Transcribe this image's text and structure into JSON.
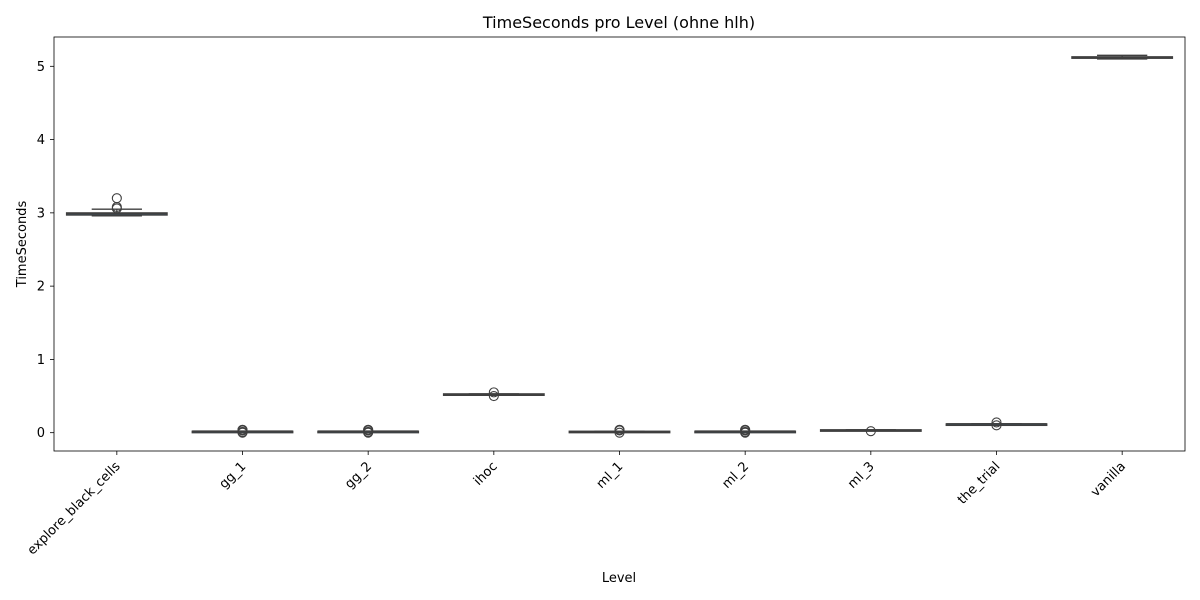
{
  "chart_data": {
    "type": "box",
    "title": "TimeSeconds pro Level (ohne hlh)",
    "xlabel": "Level",
    "ylabel": "TimeSeconds",
    "ylim": [
      -0.25,
      5.4
    ],
    "yticks": [
      0,
      1,
      2,
      3,
      4,
      5
    ],
    "grid": false,
    "box_color": "#3274a1",
    "categories": [
      "explore_black_cells",
      "gg_1",
      "gg_2",
      "ihoc",
      "ml_1",
      "ml_2",
      "ml_3",
      "the_trial",
      "vanilla"
    ],
    "boxes": [
      {
        "category": "explore_black_cells",
        "whislo": 2.96,
        "q1": 2.97,
        "median": 2.99,
        "q3": 3.0,
        "whishi": 3.05,
        "fliers": [
          3.06,
          3.08,
          3.2
        ]
      },
      {
        "category": "gg_1",
        "whislo": 0.02,
        "q1": 0.02,
        "median": 0.02,
        "q3": 0.02,
        "whishi": 0.02,
        "fliers": [
          0.0,
          0.01,
          0.03,
          0.04
        ]
      },
      {
        "category": "gg_2",
        "whislo": 0.02,
        "q1": 0.02,
        "median": 0.02,
        "q3": 0.02,
        "whishi": 0.02,
        "fliers": [
          0.0,
          0.01,
          0.03,
          0.04
        ]
      },
      {
        "category": "ihoc",
        "whislo": 0.52,
        "q1": 0.52,
        "median": 0.52,
        "q3": 0.53,
        "whishi": 0.53,
        "fliers": [
          0.5,
          0.55
        ]
      },
      {
        "category": "ml_1",
        "whislo": 0.01,
        "q1": 0.01,
        "median": 0.01,
        "q3": 0.02,
        "whishi": 0.02,
        "fliers": [
          0.0,
          0.03,
          0.04
        ]
      },
      {
        "category": "ml_2",
        "whislo": 0.02,
        "q1": 0.02,
        "median": 0.02,
        "q3": 0.02,
        "whishi": 0.02,
        "fliers": [
          0.0,
          0.01,
          0.03,
          0.04
        ]
      },
      {
        "category": "ml_3",
        "whislo": 0.03,
        "q1": 0.03,
        "median": 0.03,
        "q3": 0.04,
        "whishi": 0.04,
        "fliers": [
          0.02
        ]
      },
      {
        "category": "the_trial",
        "whislo": 0.12,
        "q1": 0.12,
        "median": 0.12,
        "q3": 0.12,
        "whishi": 0.12,
        "fliers": [
          0.1,
          0.14
        ]
      },
      {
        "category": "vanilla",
        "whislo": 5.1,
        "q1": 5.11,
        "median": 5.12,
        "q3": 5.13,
        "whishi": 5.15,
        "fliers": []
      }
    ]
  }
}
